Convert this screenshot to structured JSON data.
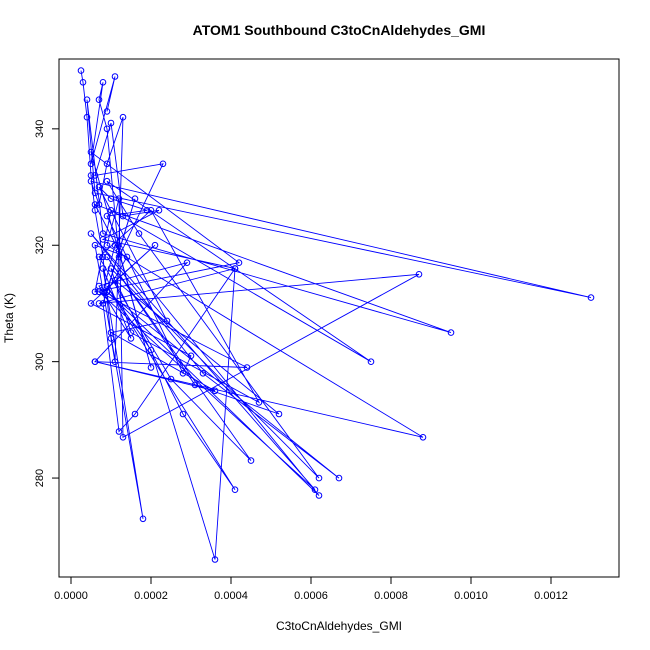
{
  "chart_data": {
    "type": "line",
    "title": "ATOM1 Southbound C3toCnAldehydes_GMI",
    "xlabel": "C3toCnAldehydes_GMI",
    "ylabel": "Theta (K)",
    "xlim": [
      -3e-05,
      0.00137
    ],
    "ylim": [
      263,
      352
    ],
    "x_ticks": [
      0,
      0.0002,
      0.0004,
      0.0006,
      0.0008,
      0.001,
      0.0012
    ],
    "x_tick_labels": [
      "0.0000",
      "0.0002",
      "0.0004",
      "0.0006",
      "0.0008",
      "0.0010",
      "0.0012"
    ],
    "y_ticks": [
      280,
      300,
      320,
      340
    ],
    "y_tick_labels": [
      "280",
      "300",
      "320",
      "340"
    ],
    "grid": false,
    "legend": "none",
    "series_color": "#0000ff",
    "markers": "open-circle",
    "series": [
      {
        "x": [
          2.5e-05,
          3e-05,
          4e-05,
          5e-05,
          6e-05,
          8e-05,
          0.0001,
          0.00011,
          0.00013,
          9e-05,
          7e-05,
          5e-05,
          0.0013,
          6e-05,
          4e-05,
          8e-05,
          0.00095,
          6e-05,
          0.00012,
          0.0002,
          5e-05,
          0.00042,
          6e-05,
          0.0001,
          0.00075,
          9e-05,
          0.00017,
          0.00062,
          0.0001,
          0.00015,
          0.00047,
          0.0002,
          7e-05,
          0.00025,
          0.00045,
          9e-05,
          0.00031,
          0.00052,
          0.00011,
          0.00028,
          0.00041,
          9e-05,
          0.0002,
          0.00036,
          0.00041,
          0.00016,
          0.00012,
          8e-05,
          0.00016,
          9e-05,
          0.00014,
          6e-05,
          0.00018,
          8e-05,
          0.00015,
          7e-05,
          0.00029,
          6e-05,
          0.00044,
          7e-05,
          0.00061,
          5e-05,
          0.00033,
          0.00067,
          9e-05,
          0.00062,
          0.00011,
          8e-05,
          0.00021,
          5e-05,
          0.0003,
          0.00028,
          9e-05,
          0.00019,
          0.0001,
          7e-05,
          0.00024,
          0.0001,
          0.00036,
          6e-05,
          0.00088,
          9e-05,
          0.00012,
          0.00013,
          0.00087,
          7e-05,
          0.00041,
          8e-05,
          0.00022,
          0.00013,
          0.0001,
          6e-05,
          0.00023,
          0.00012,
          9e-05,
          7e-05,
          8e-05,
          5e-05,
          0.00011,
          9e-05
        ],
        "y": [
          350,
          348,
          342,
          332,
          326,
          318,
          304,
          300,
          342,
          334,
          327,
          331,
          311,
          329,
          345,
          322,
          305,
          327,
          319,
          299,
          336,
          317,
          312,
          326,
          300,
          331,
          322,
          280,
          316,
          305,
          293,
          326,
          318,
          297,
          283,
          318,
          296,
          291,
          314,
          291,
          278,
          313,
          302,
          266,
          316,
          291,
          288,
          310,
          328,
          312,
          318,
          320,
          273,
          316,
          304,
          313,
          317,
          300,
          299,
          312,
          278,
          322,
          298,
          280,
          312,
          277,
          320,
          312,
          320,
          310,
          301,
          298,
          325,
          326,
          328,
          330,
          307,
          305,
          295,
          300,
          287,
          320,
          328,
          287,
          315,
          310,
          316,
          321,
          326,
          325,
          341,
          332,
          334,
          318,
          340,
          345,
          348,
          334,
          349,
          343
        ]
      }
    ]
  }
}
